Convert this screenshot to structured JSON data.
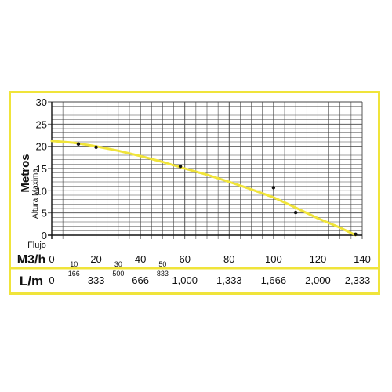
{
  "chart_data": {
    "type": "line",
    "xlabel_top": "Flujo",
    "xlabel": "M3/h",
    "x2label": "L/m",
    "ylabel": "Metros",
    "ylabel_sub": "Altura Maxima",
    "xlim": [
      0,
      140
    ],
    "ylim": [
      0,
      30
    ],
    "grid": true,
    "x_ticks": [
      "0",
      "20",
      "40",
      "60",
      "80",
      "100",
      "120",
      "140"
    ],
    "x_minor_ticks": [
      "10",
      "30",
      "50"
    ],
    "y_ticks": [
      "0",
      "5",
      "10",
      "15",
      "20",
      "25",
      "30"
    ],
    "lm_ticks_large": [
      "0",
      "333",
      "666",
      "1,000",
      "1,333",
      "1,666",
      "2,000",
      "2,333"
    ],
    "lm_ticks_small": [
      "166",
      "500",
      "833"
    ],
    "series": [
      {
        "color": "#f0e43a",
        "points": [
          [
            0,
            21.2
          ],
          [
            10,
            20.8
          ],
          [
            20,
            20.0
          ],
          [
            30,
            19.0
          ],
          [
            40,
            17.8
          ],
          [
            50,
            16.5
          ],
          [
            60,
            15.0
          ],
          [
            70,
            13.6
          ],
          [
            80,
            12.0
          ],
          [
            90,
            10.3
          ],
          [
            100,
            8.5
          ],
          [
            110,
            6.2
          ],
          [
            120,
            3.8
          ],
          [
            130,
            1.7
          ],
          [
            137,
            0
          ]
        ]
      }
    ],
    "markers": [
      [
        12,
        20.5
      ],
      [
        20,
        19.8
      ],
      [
        58,
        15.5
      ],
      [
        100,
        10.7
      ],
      [
        110,
        5.1
      ],
      [
        137,
        0.2
      ]
    ]
  }
}
